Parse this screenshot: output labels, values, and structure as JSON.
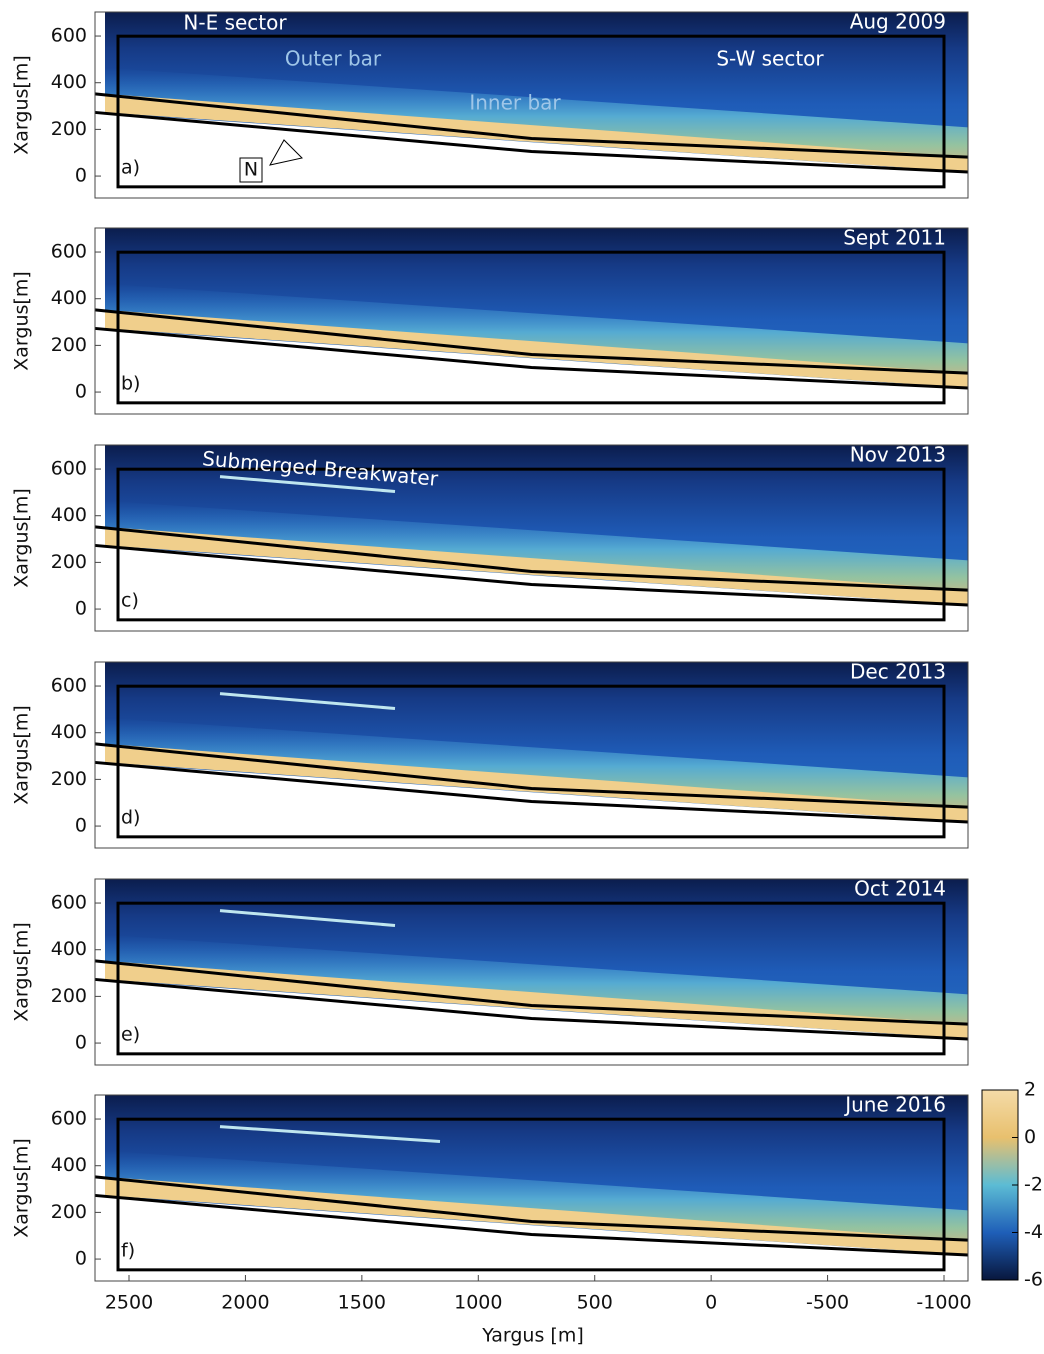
{
  "chart_data": [
    {
      "type": "image",
      "label": "a)",
      "date": "Aug 2009",
      "ylabel": "Xargus[m]",
      "annotations": [
        "N-E sector",
        "Outer bar",
        "Inner bar",
        "S-W sector",
        "N"
      ],
      "xlim": [
        2646,
        -1103
      ],
      "ylim": [
        -94,
        703
      ],
      "yticks": [
        0,
        200,
        400,
        600
      ]
    },
    {
      "type": "image",
      "label": "b)",
      "date": "Sept 2011",
      "ylabel": "Xargus[m]",
      "xlim": [
        2646,
        -1103
      ],
      "ylim": [
        -94,
        703
      ],
      "yticks": [
        0,
        200,
        400,
        600
      ]
    },
    {
      "type": "image",
      "label": "c)",
      "date": "Nov 2013",
      "ylabel": "Xargus[m]",
      "annotations": [
        "Submerged Breakwater"
      ],
      "xlim": [
        2646,
        -1103
      ],
      "ylim": [
        -94,
        703
      ],
      "yticks": [
        0,
        200,
        400,
        600
      ]
    },
    {
      "type": "image",
      "label": "d)",
      "date": "Dec 2013",
      "ylabel": "Xargus[m]",
      "xlim": [
        2646,
        -1103
      ],
      "ylim": [
        -94,
        703
      ],
      "yticks": [
        0,
        200,
        400,
        600
      ]
    },
    {
      "type": "image",
      "label": "e)",
      "date": "Oct 2014",
      "ylabel": "Xargus[m]",
      "xlim": [
        2646,
        -1103
      ],
      "ylim": [
        -94,
        703
      ],
      "yticks": [
        0,
        200,
        400,
        600
      ]
    },
    {
      "type": "image",
      "label": "f)",
      "date": "June 2016",
      "ylabel": "Xargus[m]",
      "xlabel": "Yargus [m]",
      "xlim": [
        2646,
        -1103
      ],
      "ylim": [
        -94,
        703
      ],
      "yticks": [
        0,
        200,
        400,
        600
      ],
      "xticks": [
        2500,
        2000,
        1500,
        1000,
        500,
        0,
        -500,
        -1000
      ],
      "colorbar": {
        "clim": [
          -6,
          2
        ],
        "ticks": [
          2,
          0,
          -2,
          -4,
          -6
        ]
      }
    }
  ]
}
